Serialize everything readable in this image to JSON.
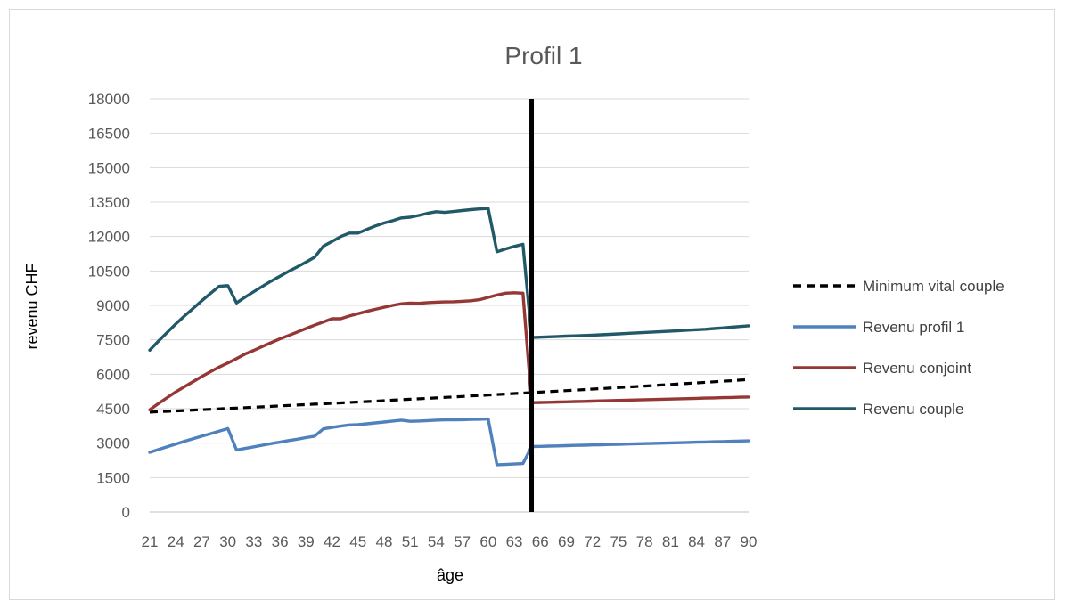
{
  "chart_data": {
    "type": "line",
    "title": "Profil 1",
    "xlabel": "âge",
    "ylabel": "revenu CHF",
    "ylim": [
      0,
      18000
    ],
    "yticks": [
      0,
      1500,
      3000,
      4500,
      6000,
      7500,
      9000,
      10500,
      12000,
      13500,
      15000,
      16500,
      18000
    ],
    "x": [
      21,
      22,
      23,
      24,
      25,
      26,
      27,
      28,
      29,
      30,
      31,
      32,
      33,
      34,
      35,
      36,
      37,
      38,
      39,
      40,
      41,
      42,
      43,
      44,
      45,
      46,
      47,
      48,
      49,
      50,
      51,
      52,
      53,
      54,
      55,
      56,
      57,
      58,
      59,
      60,
      61,
      62,
      63,
      64,
      65,
      66,
      67,
      68,
      69,
      70,
      71,
      72,
      73,
      74,
      75,
      76,
      77,
      78,
      79,
      80,
      81,
      82,
      83,
      84,
      85,
      86,
      87,
      88,
      89,
      90
    ],
    "x_tick_labels": [
      21,
      24,
      27,
      30,
      33,
      36,
      39,
      42,
      45,
      48,
      51,
      54,
      57,
      60,
      63,
      66,
      69,
      72,
      75,
      78,
      81,
      84,
      87,
      90
    ],
    "vertical_marker_x": 65,
    "grid": "horizontal",
    "legend_position": "right",
    "series": [
      {
        "name": "Minimum vital couple",
        "color": "#000000",
        "dash": true,
        "values": [
          4350,
          4367,
          4385,
          4402,
          4420,
          4438,
          4456,
          4474,
          4492,
          4510,
          4528,
          4546,
          4565,
          4583,
          4602,
          4620,
          4639,
          4658,
          4677,
          4696,
          4715,
          4734,
          4753,
          4773,
          4792,
          4811,
          4831,
          4851,
          4871,
          4890,
          4910,
          4930,
          4951,
          4971,
          4991,
          5012,
          5032,
          5053,
          5074,
          5095,
          5115,
          5136,
          5158,
          5179,
          5200,
          5221,
          5243,
          5265,
          5286,
          5308,
          5330,
          5352,
          5374,
          5397,
          5419,
          5442,
          5464,
          5487,
          5510,
          5533,
          5556,
          5579,
          5602,
          5626,
          5649,
          5673,
          5697,
          5720,
          5744,
          5768
        ]
      },
      {
        "name": "Revenu profil 1",
        "color": "#4f81bd",
        "dash": false,
        "values": [
          2600,
          2720,
          2840,
          2960,
          3080,
          3190,
          3300,
          3410,
          3520,
          3630,
          2700,
          2770,
          2840,
          2910,
          2980,
          3040,
          3110,
          3170,
          3240,
          3300,
          3620,
          3680,
          3740,
          3790,
          3800,
          3840,
          3880,
          3920,
          3960,
          4000,
          3950,
          3960,
          3980,
          4000,
          4010,
          4010,
          4020,
          4030,
          4040,
          4050,
          2060,
          2070,
          2090,
          2110,
          2850,
          2860,
          2870,
          2880,
          2890,
          2900,
          2910,
          2920,
          2930,
          2940,
          2950,
          2960,
          2970,
          2980,
          2990,
          3000,
          3010,
          3020,
          3030,
          3040,
          3050,
          3060,
          3070,
          3080,
          3090,
          3100
        ]
      },
      {
        "name": "Revenu conjoint",
        "color": "#953735",
        "dash": false,
        "values": [
          4450,
          4720,
          4980,
          5230,
          5460,
          5680,
          5900,
          6110,
          6310,
          6490,
          6680,
          6880,
          7040,
          7210,
          7380,
          7540,
          7690,
          7840,
          7990,
          8140,
          8280,
          8420,
          8420,
          8540,
          8640,
          8740,
          8830,
          8920,
          9000,
          9070,
          9100,
          9090,
          9120,
          9140,
          9150,
          9160,
          9180,
          9200,
          9250,
          9350,
          9450,
          9530,
          9550,
          9530,
          4760,
          4770,
          4780,
          4790,
          4800,
          4810,
          4820,
          4830,
          4840,
          4850,
          4860,
          4870,
          4880,
          4890,
          4900,
          4910,
          4920,
          4930,
          4940,
          4950,
          4960,
          4970,
          4980,
          4990,
          5000,
          5010
        ]
      },
      {
        "name": "Revenu couple",
        "color": "#215968",
        "dash": false,
        "values": [
          7050,
          7440,
          7820,
          8190,
          8540,
          8870,
          9200,
          9520,
          9830,
          9860,
          9110,
          9360,
          9600,
          9830,
          10060,
          10270,
          10480,
          10680,
          10880,
          11100,
          11580,
          11780,
          12000,
          12150,
          12150,
          12310,
          12460,
          12590,
          12690,
          12810,
          12840,
          12920,
          13010,
          13080,
          13050,
          13090,
          13130,
          13170,
          13200,
          13220,
          11340,
          11460,
          11570,
          11660,
          7600,
          7615,
          7630,
          7645,
          7660,
          7675,
          7690,
          7705,
          7720,
          7740,
          7760,
          7780,
          7800,
          7820,
          7840,
          7860,
          7880,
          7900,
          7920,
          7940,
          7960,
          7990,
          8020,
          8050,
          8080,
          8110
        ]
      }
    ]
  }
}
